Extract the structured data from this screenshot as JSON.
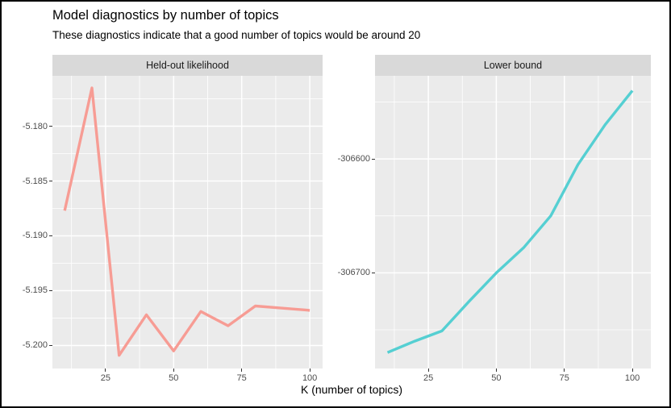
{
  "title": "Model diagnostics by number of topics",
  "subtitle": "These diagnostics indicate that a good number of topics would be around 20",
  "x_axis_title": "K (number of topics)",
  "colors": {
    "heldout_line": "#F79C94",
    "lower_bound_line": "#55CFD2",
    "panel_background": "#EBEBEB",
    "strip_background": "#D9D9D9",
    "gridline_major": "#FFFFFF",
    "gridline_minor": "#FFFFFF",
    "tick_label_text": "#4D4D4D",
    "strip_text": "#1A1A1A",
    "axis_tick_mark": "#333333"
  },
  "chart_data": [
    {
      "type": "line",
      "facet": "Held-out likelihood",
      "color_key": "heldout_line",
      "x": [
        10,
        20,
        30,
        40,
        50,
        60,
        70,
        80,
        90,
        100
      ],
      "y": [
        -5.1877,
        -5.1765,
        -5.2009,
        -5.1972,
        -5.2005,
        -5.1969,
        -5.1982,
        -5.1964,
        -5.1966,
        -5.1968
      ],
      "xlim": [
        5.5,
        104.7
      ],
      "ylim": [
        -5.2021,
        -5.1754
      ],
      "x_ticks": [
        25,
        50,
        75,
        100
      ],
      "x_tick_labels": [
        "25",
        "50",
        "75",
        "100"
      ],
      "x_minor": [
        12.5,
        37.5,
        62.5,
        87.5
      ],
      "y_ticks": [
        -5.18,
        -5.185,
        -5.19,
        -5.195,
        -5.2
      ],
      "y_tick_labels": [
        "-5.180",
        "-5.185",
        "-5.190",
        "-5.195",
        "-5.200"
      ],
      "y_minor": [
        -5.1775,
        -5.1825,
        -5.1875,
        -5.1925,
        -5.1975
      ],
      "grid": true,
      "legend": "none"
    },
    {
      "type": "line",
      "facet": "Lower bound",
      "color_key": "lower_bound_line",
      "x": [
        10,
        20,
        30,
        40,
        50,
        60,
        70,
        80,
        90,
        100
      ],
      "y": [
        -306770,
        -306760,
        -306751,
        -306725,
        -306700,
        -306678,
        -306650,
        -306605,
        -306570,
        -306540
      ],
      "xlim": [
        5.4,
        106.8
      ],
      "ylim": [
        -306784,
        -306527
      ],
      "x_ticks": [
        25,
        50,
        75,
        100
      ],
      "x_tick_labels": [
        "25",
        "50",
        "75",
        "100"
      ],
      "x_minor": [
        12.5,
        37.5,
        62.5,
        87.5
      ],
      "y_ticks": [
        -306600,
        -306700
      ],
      "y_tick_labels": [
        "-306600",
        "-306700"
      ],
      "y_minor": [
        -306550,
        -306650,
        -306750
      ],
      "grid": true,
      "legend": "none"
    }
  ]
}
